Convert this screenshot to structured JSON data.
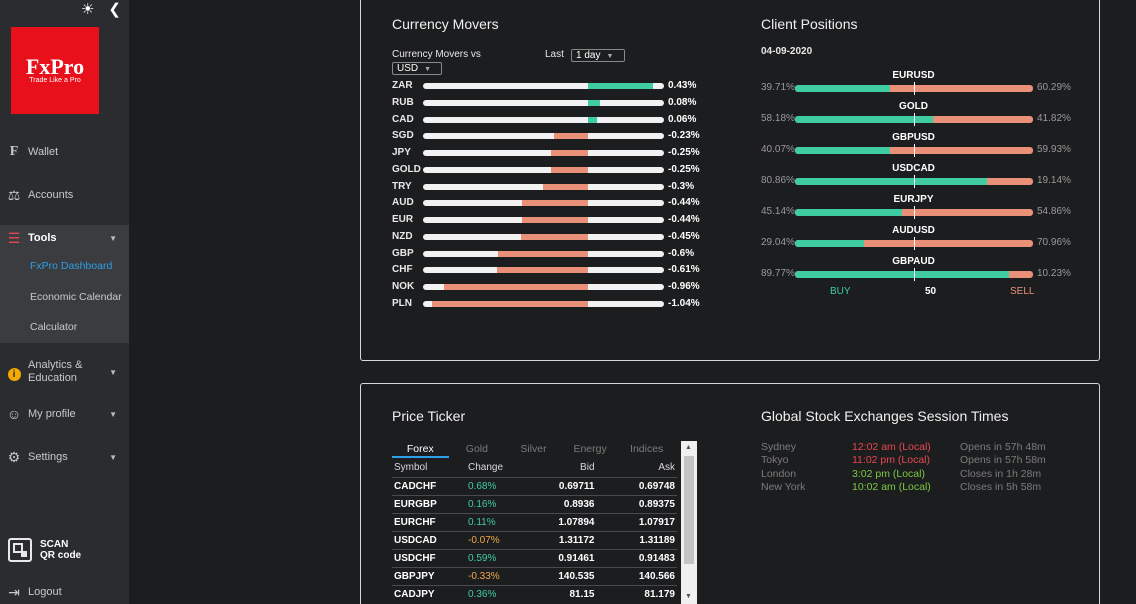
{
  "sidebar": {
    "brand": "FxPro",
    "slogan": "Trade Like a Pro",
    "items": {
      "wallet": "Wallet",
      "accounts": "Accounts",
      "tools": "Tools",
      "analytics_line1": "Analytics &",
      "analytics_line2": "Education",
      "my_profile": "My profile",
      "settings": "Settings",
      "logout": "Logout"
    },
    "tools_sub": {
      "dashboard": "FxPro Dashboard",
      "calendar": "Economic Calendar",
      "calculator": "Calculator"
    },
    "scan_line1": "SCAN",
    "scan_line2": "QR code"
  },
  "currency_movers": {
    "title": "Currency Movers",
    "vs_label": "Currency Movers vs",
    "vs_value": "USD",
    "period_label": "Last",
    "period_value": "1 day",
    "rows": [
      {
        "code": "ZAR",
        "value": 0.43,
        "label": "0.43%"
      },
      {
        "code": "RUB",
        "value": 0.08,
        "label": "0.08%"
      },
      {
        "code": "CAD",
        "value": 0.06,
        "label": "0.06%"
      },
      {
        "code": "SGD",
        "value": -0.23,
        "label": "-0.23%"
      },
      {
        "code": "JPY",
        "value": -0.25,
        "label": "-0.25%"
      },
      {
        "code": "GOLD",
        "value": -0.25,
        "label": "-0.25%"
      },
      {
        "code": "TRY",
        "value": -0.3,
        "label": "-0.3%"
      },
      {
        "code": "AUD",
        "value": -0.44,
        "label": "-0.44%"
      },
      {
        "code": "EUR",
        "value": -0.44,
        "label": "-0.44%"
      },
      {
        "code": "NZD",
        "value": -0.45,
        "label": "-0.45%"
      },
      {
        "code": "GBP",
        "value": -0.6,
        "label": "-0.6%"
      },
      {
        "code": "CHF",
        "value": -0.61,
        "label": "-0.61%"
      },
      {
        "code": "NOK",
        "value": -0.96,
        "label": "-0.96%"
      },
      {
        "code": "PLN",
        "value": -1.04,
        "label": "-1.04%"
      }
    ],
    "colors": {
      "up": "#3fcca0",
      "down": "#ea8f78"
    }
  },
  "client_positions": {
    "title": "Client Positions",
    "date": "04-09-2020",
    "rows": [
      {
        "symbol": "EURUSD",
        "buy": 39.71,
        "buy_label": "39.71%",
        "sell_label": "60.29%"
      },
      {
        "symbol": "GOLD",
        "buy": 58.18,
        "buy_label": "58.18%",
        "sell_label": "41.82%"
      },
      {
        "symbol": "GBPUSD",
        "buy": 40.07,
        "buy_label": "40.07%",
        "sell_label": "59.93%"
      },
      {
        "symbol": "USDCAD",
        "buy": 80.86,
        "buy_label": "80.86%",
        "sell_label": "19.14%"
      },
      {
        "symbol": "EURJPY",
        "buy": 45.14,
        "buy_label": "45.14%",
        "sell_label": "54.86%"
      },
      {
        "symbol": "AUDUSD",
        "buy": 29.04,
        "buy_label": "29.04%",
        "sell_label": "70.96%"
      },
      {
        "symbol": "GBPAUD",
        "buy": 89.77,
        "buy_label": "89.77%",
        "sell_label": "10.23%"
      }
    ],
    "legend_buy": "BUY",
    "legend_mid": "50",
    "legend_sell": "SELL"
  },
  "price_ticker": {
    "title": "Price Ticker",
    "tabs": [
      "Forex",
      "Gold",
      "Silver",
      "Energy",
      "Indices"
    ],
    "headers": {
      "symbol": "Symbol",
      "change": "Change",
      "bid": "Bid",
      "ask": "Ask"
    },
    "rows": [
      {
        "symbol": "CADCHF",
        "change": "0.68%",
        "bid": "0.69711",
        "ask": "0.69748",
        "up": true
      },
      {
        "symbol": "EURGBP",
        "change": "0.16%",
        "bid": "0.8936",
        "ask": "0.89375",
        "up": true
      },
      {
        "symbol": "EURCHF",
        "change": "0.11%",
        "bid": "1.07894",
        "ask": "1.07917",
        "up": true
      },
      {
        "symbol": "USDCAD",
        "change": "-0.07%",
        "bid": "1.31172",
        "ask": "1.31189",
        "up": false
      },
      {
        "symbol": "USDCHF",
        "change": "0.59%",
        "bid": "0.91461",
        "ask": "0.91483",
        "up": true
      },
      {
        "symbol": "GBPJPY",
        "change": "-0.33%",
        "bid": "140.535",
        "ask": "140.566",
        "up": false
      },
      {
        "symbol": "CADJPY",
        "change": "0.36%",
        "bid": "81.15",
        "ask": "81.179",
        "up": true
      }
    ]
  },
  "sessions": {
    "title": "Global Stock Exchanges Session Times",
    "rows": [
      {
        "city": "Sydney",
        "time": "12:02 am (Local)",
        "status": "Opens in 57h 48m",
        "open": false
      },
      {
        "city": "Tokyo",
        "time": "11:02 pm (Local)",
        "status": "Opens in 57h 58m",
        "open": false
      },
      {
        "city": "London",
        "time": "3:02 pm (Local)",
        "status": "Closes in 1h 28m",
        "open": true
      },
      {
        "city": "New York",
        "time": "10:02 am (Local)",
        "status": "Closes in 5h 58m",
        "open": true
      }
    ]
  },
  "icons": {
    "theme": "sun-icon",
    "collapse": "chevron-left-icon"
  }
}
